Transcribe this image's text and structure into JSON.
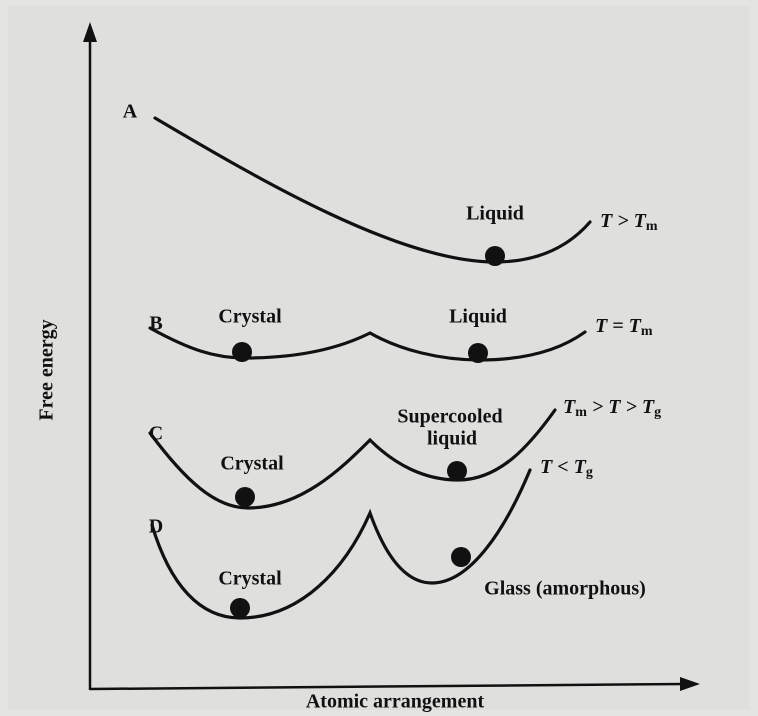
{
  "axes": {
    "y_label": "Free energy",
    "x_label": "Atomic arrangement"
  },
  "curves": [
    {
      "label": "A",
      "states": [
        "Liquid"
      ],
      "condition": [
        "T > T",
        "m"
      ]
    },
    {
      "label": "B",
      "states": [
        "Crystal",
        "Liquid"
      ],
      "condition": [
        "T = T",
        "m"
      ]
    },
    {
      "label": "C",
      "states": [
        "Crystal",
        "Supercooled",
        "liquid"
      ],
      "condition": [
        "T",
        "m",
        " > T > T",
        "g"
      ]
    },
    {
      "label": "D",
      "states": [
        "Crystal",
        "Glass (amorphous)"
      ],
      "condition": [
        "T < T",
        "g"
      ]
    }
  ]
}
